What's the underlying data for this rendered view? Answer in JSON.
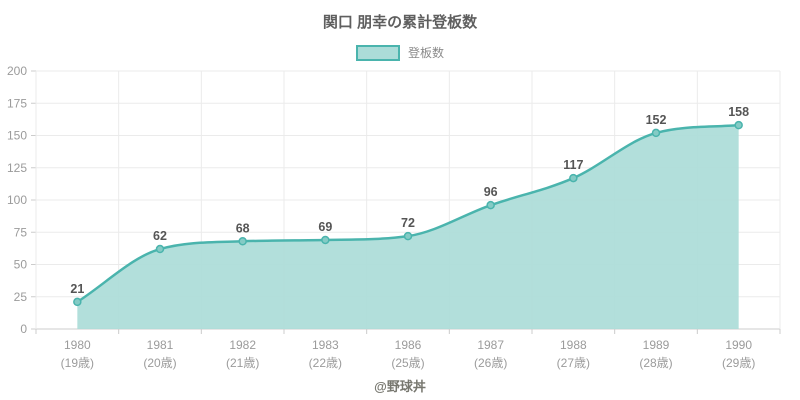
{
  "chart_data": {
    "type": "area",
    "title": "関口 朋幸の累計登板数",
    "footer": "@野球丼",
    "legend": {
      "position": "top",
      "label": "登板数"
    },
    "categories": [
      "1980",
      "1981",
      "1982",
      "1983",
      "1986",
      "1987",
      "1988",
      "1989",
      "1990"
    ],
    "categories_sub": [
      "(19歳)",
      "(20歳)",
      "(21歳)",
      "(22歳)",
      "(25歳)",
      "(26歳)",
      "(27歳)",
      "(28歳)",
      "(29歳)"
    ],
    "series": [
      {
        "name": "登板数",
        "values": [
          21,
          62,
          68,
          69,
          72,
          96,
          117,
          152,
          158
        ]
      }
    ],
    "ylim": [
      0,
      200
    ],
    "ytick_step": 25,
    "grid": true,
    "colors": {
      "line": "#4ab4ad",
      "fill": "#abdcd8",
      "marker_fill": "#84cbc5",
      "grid": "#ebebeb",
      "axis": "#cccccc",
      "tick_label": "#9b9b9b",
      "data_label": "#555555"
    }
  }
}
